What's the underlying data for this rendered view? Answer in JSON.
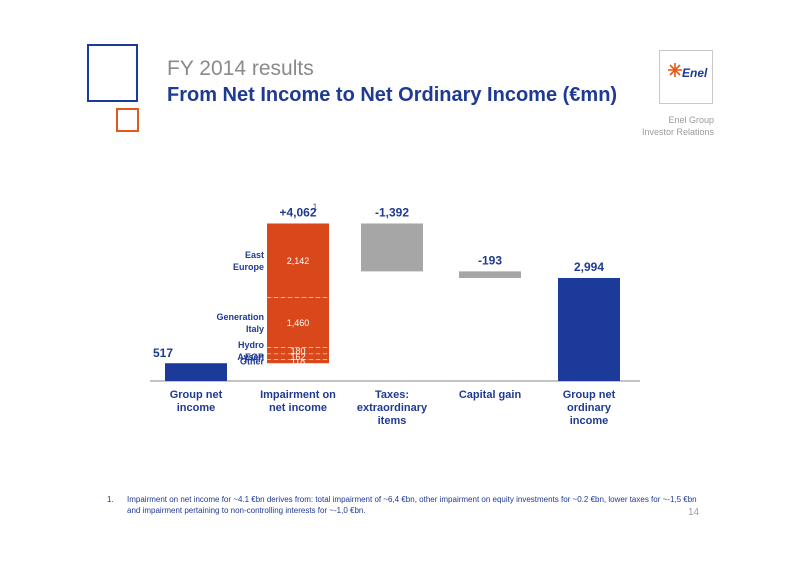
{
  "header": {
    "subtitle": "FY 2014 results",
    "title": "From Net Income to Net Ordinary Income (€mn)"
  },
  "logo": {
    "text": "Enel"
  },
  "brand": {
    "line1": "Enel Group",
    "line2": "Investor Relations"
  },
  "colors": {
    "blue": "#1b3a9a",
    "orange": "#d9481a",
    "grey": "#a6a6a6",
    "text_blue": "#1f3a93"
  },
  "chart_data": {
    "type": "bar",
    "subtype": "waterfall",
    "categories": [
      "Group net income",
      "Impairment on net income",
      "Taxes: extraordinary items",
      "Capital gain",
      "Group net ordinary income"
    ],
    "category_lines": [
      [
        "Group net",
        "income"
      ],
      [
        "Impairment on",
        "net income"
      ],
      [
        "Taxes:",
        "extraordinary",
        "items"
      ],
      [
        "Capital gain"
      ],
      [
        "Group net",
        "ordinary",
        "income"
      ]
    ],
    "values": [
      517,
      4062,
      -1392,
      -193,
      2994
    ],
    "value_labels": [
      "517",
      "+4,062",
      "-1,392",
      "-193",
      "2,994"
    ],
    "footnote_marker": "1",
    "bar_kinds": [
      "total",
      "increase",
      "decrease",
      "decrease",
      "total"
    ],
    "breakdown": {
      "category": "Impairment on net income",
      "segments": [
        {
          "label_lines": [
            "Other"
          ],
          "value": 118,
          "value_label": "118"
        },
        {
          "label_lines": [
            "EGP"
          ],
          "value": 162,
          "value_label": "162"
        },
        {
          "label_lines": [
            "Hydro",
            "Aysen"
          ],
          "value": 180,
          "value_label": "180"
        },
        {
          "label_lines": [
            "Generation",
            "Italy"
          ],
          "value": 1460,
          "value_label": "1,460"
        },
        {
          "label_lines": [
            "East",
            "Europe"
          ],
          "value": 2142,
          "value_label": "2,142"
        }
      ]
    }
  },
  "footnote": {
    "number": "1.",
    "text": "Impairment on net income for ~4.1 €bn derives from: total impairment of ~6,4 €bn, other impairment on equity investments for ~0.2 €bn, lower taxes for ~-1,5 €bn and impairment pertaining to non-controlling interests for ~-1,0 €bn."
  },
  "page_number": "14"
}
